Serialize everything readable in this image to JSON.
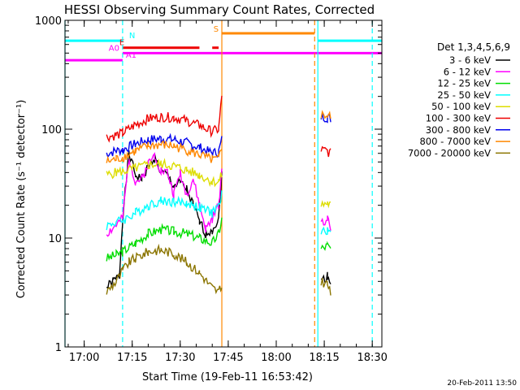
{
  "chart_data": {
    "type": "line",
    "title": "HESSI Observing Summary Count Rates, Corrected",
    "xlabel": "Start Time (19-Feb-11 16:53:42)",
    "ylabel": "Corrected Count Rate (s⁻¹ detector⁻¹)",
    "yscale": "log",
    "ylim": [
      1,
      1000
    ],
    "xlim": [
      "16:54",
      "18:33"
    ],
    "x_ticks": [
      "17:00",
      "17:15",
      "17:30",
      "17:45",
      "18:00",
      "18:15",
      "18:30"
    ],
    "y_ticks": [
      "1",
      "10",
      "100",
      "1000"
    ],
    "timestamp": "20-Feb-2011 13:50",
    "legend": {
      "position": "right",
      "header": "Det 1,3,4,5,6,9",
      "entries": [
        {
          "label": "3 - 6 keV",
          "color": "#000000"
        },
        {
          "label": "6 - 12 keV",
          "color": "#ff00ff"
        },
        {
          "label": "12 - 25 keV",
          "color": "#00dd00"
        },
        {
          "label": "25 - 50 keV",
          "color": "#00ffff"
        },
        {
          "label": "50 - 100 keV",
          "color": "#dddd00"
        },
        {
          "label": "100 - 300 keV",
          "color": "#ee0000"
        },
        {
          "label": "300 - 800 keV",
          "color": "#0000ee"
        },
        {
          "label": "800 - 7000 keV",
          "color": "#ff8800"
        },
        {
          "label": "7000 - 20000 keV",
          "color": "#8b7500"
        }
      ]
    },
    "flag_bars": [
      {
        "label": "N",
        "color": "#00ffff",
        "y": 650,
        "segments": [
          [
            "16:54",
            "17:12"
          ],
          [
            "18:13",
            "18:33"
          ]
        ]
      },
      {
        "label": "S",
        "color": "#ff8800",
        "y": 760,
        "segments": [
          [
            "17:43",
            "18:12"
          ]
        ]
      },
      {
        "label": "E",
        "color": "#ee0000",
        "y": 560,
        "segments": [
          [
            "17:12",
            "17:36"
          ],
          [
            "17:40",
            "17:42"
          ]
        ]
      },
      {
        "label": "A0",
        "color": "#ff00ff",
        "y": 500,
        "segments": [
          [
            "17:12",
            "18:33"
          ]
        ]
      },
      {
        "label": "A1",
        "color": "#ff00ff",
        "y": 430,
        "segments": [
          [
            "16:54",
            "17:12"
          ]
        ]
      }
    ],
    "vlines": [
      {
        "x": "16:54",
        "color": "#00ffff",
        "style": "solid"
      },
      {
        "x": "17:12",
        "color": "#00ffff",
        "style": "dashed"
      },
      {
        "x": "17:43",
        "color": "#ff8800",
        "style": "solid"
      },
      {
        "x": "18:12",
        "color": "#ff8800",
        "style": "dashed"
      },
      {
        "x": "18:13",
        "color": "#00ffff",
        "style": "solid"
      },
      {
        "x": "18:30",
        "color": "#00ffff",
        "style": "dashed"
      }
    ],
    "series": [
      {
        "name": "3 - 6 keV",
        "color": "#000000",
        "segments": [
          [
            [
              "17:07",
              3.5
            ],
            [
              "17:09",
              4
            ],
            [
              "17:11",
              4.5
            ],
            [
              "17:12",
              15
            ],
            [
              "17:14",
              60
            ],
            [
              "17:16",
              38
            ],
            [
              "17:18",
              35
            ],
            [
              "17:20",
              45
            ],
            [
              "17:22",
              55
            ],
            [
              "17:24",
              40
            ],
            [
              "17:26",
              38
            ],
            [
              "17:28",
              30
            ],
            [
              "17:30",
              32
            ],
            [
              "17:32",
              28
            ],
            [
              "17:34",
              20
            ],
            [
              "17:36",
              14
            ],
            [
              "17:38",
              11
            ],
            [
              "17:40",
              12
            ],
            [
              "17:42",
              15
            ],
            [
              "17:43",
              40
            ]
          ],
          [
            [
              "18:14",
              4
            ],
            [
              "18:16",
              4.5
            ],
            [
              "18:17",
              4
            ]
          ]
        ]
      },
      {
        "name": "6 - 12 keV",
        "color": "#ff00ff",
        "segments": [
          [
            [
              "17:07",
              11
            ],
            [
              "17:10",
              13
            ],
            [
              "17:12",
              15
            ],
            [
              "17:14",
              55
            ],
            [
              "17:16",
              33
            ],
            [
              "17:18",
              35
            ],
            [
              "17:20",
              48
            ],
            [
              "17:22",
              58
            ],
            [
              "17:24",
              42
            ],
            [
              "17:26",
              40
            ],
            [
              "17:28",
              25
            ],
            [
              "17:30",
              40
            ],
            [
              "17:32",
              25
            ],
            [
              "17:34",
              35
            ],
            [
              "17:36",
              20
            ],
            [
              "17:38",
              12
            ],
            [
              "17:40",
              15
            ],
            [
              "17:42",
              20
            ],
            [
              "17:43",
              45
            ]
          ],
          [
            [
              "18:14",
              14
            ],
            [
              "18:16",
              15
            ],
            [
              "18:17",
              12
            ]
          ]
        ]
      },
      {
        "name": "12 - 25 keV",
        "color": "#00dd00",
        "segments": [
          [
            [
              "17:07",
              6.5
            ],
            [
              "17:10",
              7
            ],
            [
              "17:12",
              7.5
            ],
            [
              "17:16",
              9
            ],
            [
              "17:20",
              11
            ],
            [
              "17:24",
              12
            ],
            [
              "17:28",
              11.5
            ],
            [
              "17:32",
              11
            ],
            [
              "17:36",
              10
            ],
            [
              "17:40",
              9
            ],
            [
              "17:42",
              11
            ],
            [
              "17:43",
              15
            ]
          ],
          [
            [
              "18:14",
              8
            ],
            [
              "18:16",
              8.5
            ],
            [
              "18:17",
              8
            ]
          ]
        ]
      },
      {
        "name": "25 - 50 keV",
        "color": "#00ffff",
        "segments": [
          [
            [
              "17:07",
              13
            ],
            [
              "17:10",
              14
            ],
            [
              "17:12",
              14.5
            ],
            [
              "17:16",
              17
            ],
            [
              "17:20",
              20
            ],
            [
              "17:24",
              22
            ],
            [
              "17:28",
              21.5
            ],
            [
              "17:32",
              21
            ],
            [
              "17:36",
              19
            ],
            [
              "17:40",
              17
            ],
            [
              "17:42",
              20
            ],
            [
              "17:43",
              25
            ]
          ],
          [
            [
              "18:14",
              11
            ],
            [
              "18:16",
              12
            ],
            [
              "18:17",
              11
            ]
          ]
        ]
      },
      {
        "name": "50 - 100 keV",
        "color": "#dddd00",
        "segments": [
          [
            [
              "17:07",
              38
            ],
            [
              "17:10",
              40
            ],
            [
              "17:12",
              41
            ],
            [
              "17:16",
              44
            ],
            [
              "17:20",
              47
            ],
            [
              "17:24",
              48
            ],
            [
              "17:28",
              46
            ],
            [
              "17:32",
              42
            ],
            [
              "17:36",
              38
            ],
            [
              "17:40",
              33
            ],
            [
              "17:42",
              33
            ],
            [
              "17:43",
              38
            ]
          ],
          [
            [
              "18:14",
              20
            ],
            [
              "18:16",
              21
            ],
            [
              "18:17",
              20
            ]
          ]
        ]
      },
      {
        "name": "100 - 300 keV",
        "color": "#ee0000",
        "segments": [
          [
            [
              "17:07",
              85
            ],
            [
              "17:10",
              88
            ],
            [
              "17:12",
              92
            ],
            [
              "17:16",
              110
            ],
            [
              "17:20",
              125
            ],
            [
              "17:24",
              130
            ],
            [
              "17:28",
              128
            ],
            [
              "17:32",
              120
            ],
            [
              "17:36",
              108
            ],
            [
              "17:40",
              95
            ],
            [
              "17:42",
              100
            ],
            [
              "17:43",
              200
            ]
          ],
          [
            [
              "18:14",
              65
            ],
            [
              "18:16",
              62
            ],
            [
              "18:17",
              60
            ]
          ]
        ]
      },
      {
        "name": "300 - 800 keV",
        "color": "#0000ee",
        "segments": [
          [
            [
              "17:07",
              60
            ],
            [
              "17:10",
              63
            ],
            [
              "17:12",
              65
            ],
            [
              "17:16",
              73
            ],
            [
              "17:20",
              80
            ],
            [
              "17:24",
              82
            ],
            [
              "17:28",
              80
            ],
            [
              "17:32",
              75
            ],
            [
              "17:36",
              68
            ],
            [
              "17:40",
              60
            ],
            [
              "17:42",
              62
            ],
            [
              "17:43",
              80
            ]
          ],
          [
            [
              "18:14",
              130
            ],
            [
              "18:16",
              128
            ],
            [
              "18:17",
              125
            ]
          ]
        ]
      },
      {
        "name": "800 - 7000 keV",
        "color": "#ff8800",
        "segments": [
          [
            [
              "17:07",
              50
            ],
            [
              "17:10",
              53
            ],
            [
              "17:12",
              55
            ],
            [
              "17:16",
              63
            ],
            [
              "17:20",
              70
            ],
            [
              "17:24",
              72
            ],
            [
              "17:28",
              70
            ],
            [
              "17:32",
              64
            ],
            [
              "17:36",
              58
            ],
            [
              "17:40",
              52
            ],
            [
              "17:42",
              53
            ],
            [
              "17:43",
              70
            ]
          ],
          [
            [
              "18:14",
              135
            ],
            [
              "18:16",
              133
            ],
            [
              "18:17",
              130
            ]
          ]
        ]
      },
      {
        "name": "7000 - 20000 keV",
        "color": "#8b7500",
        "segments": [
          [
            [
              "17:07",
              3.2
            ],
            [
              "17:10",
              4
            ],
            [
              "17:12",
              5
            ],
            [
              "17:14",
              6
            ],
            [
              "17:16",
              6.5
            ],
            [
              "17:20",
              7.5
            ],
            [
              "17:24",
              7.8
            ],
            [
              "17:28",
              7.2
            ],
            [
              "17:32",
              6
            ],
            [
              "17:36",
              4.8
            ],
            [
              "17:40",
              3.5
            ],
            [
              "17:42",
              3.2
            ],
            [
              "17:43",
              3.5
            ]
          ],
          [
            [
              "18:14",
              4
            ],
            [
              "18:16",
              3.8
            ],
            [
              "18:17",
              3
            ]
          ]
        ]
      }
    ]
  }
}
